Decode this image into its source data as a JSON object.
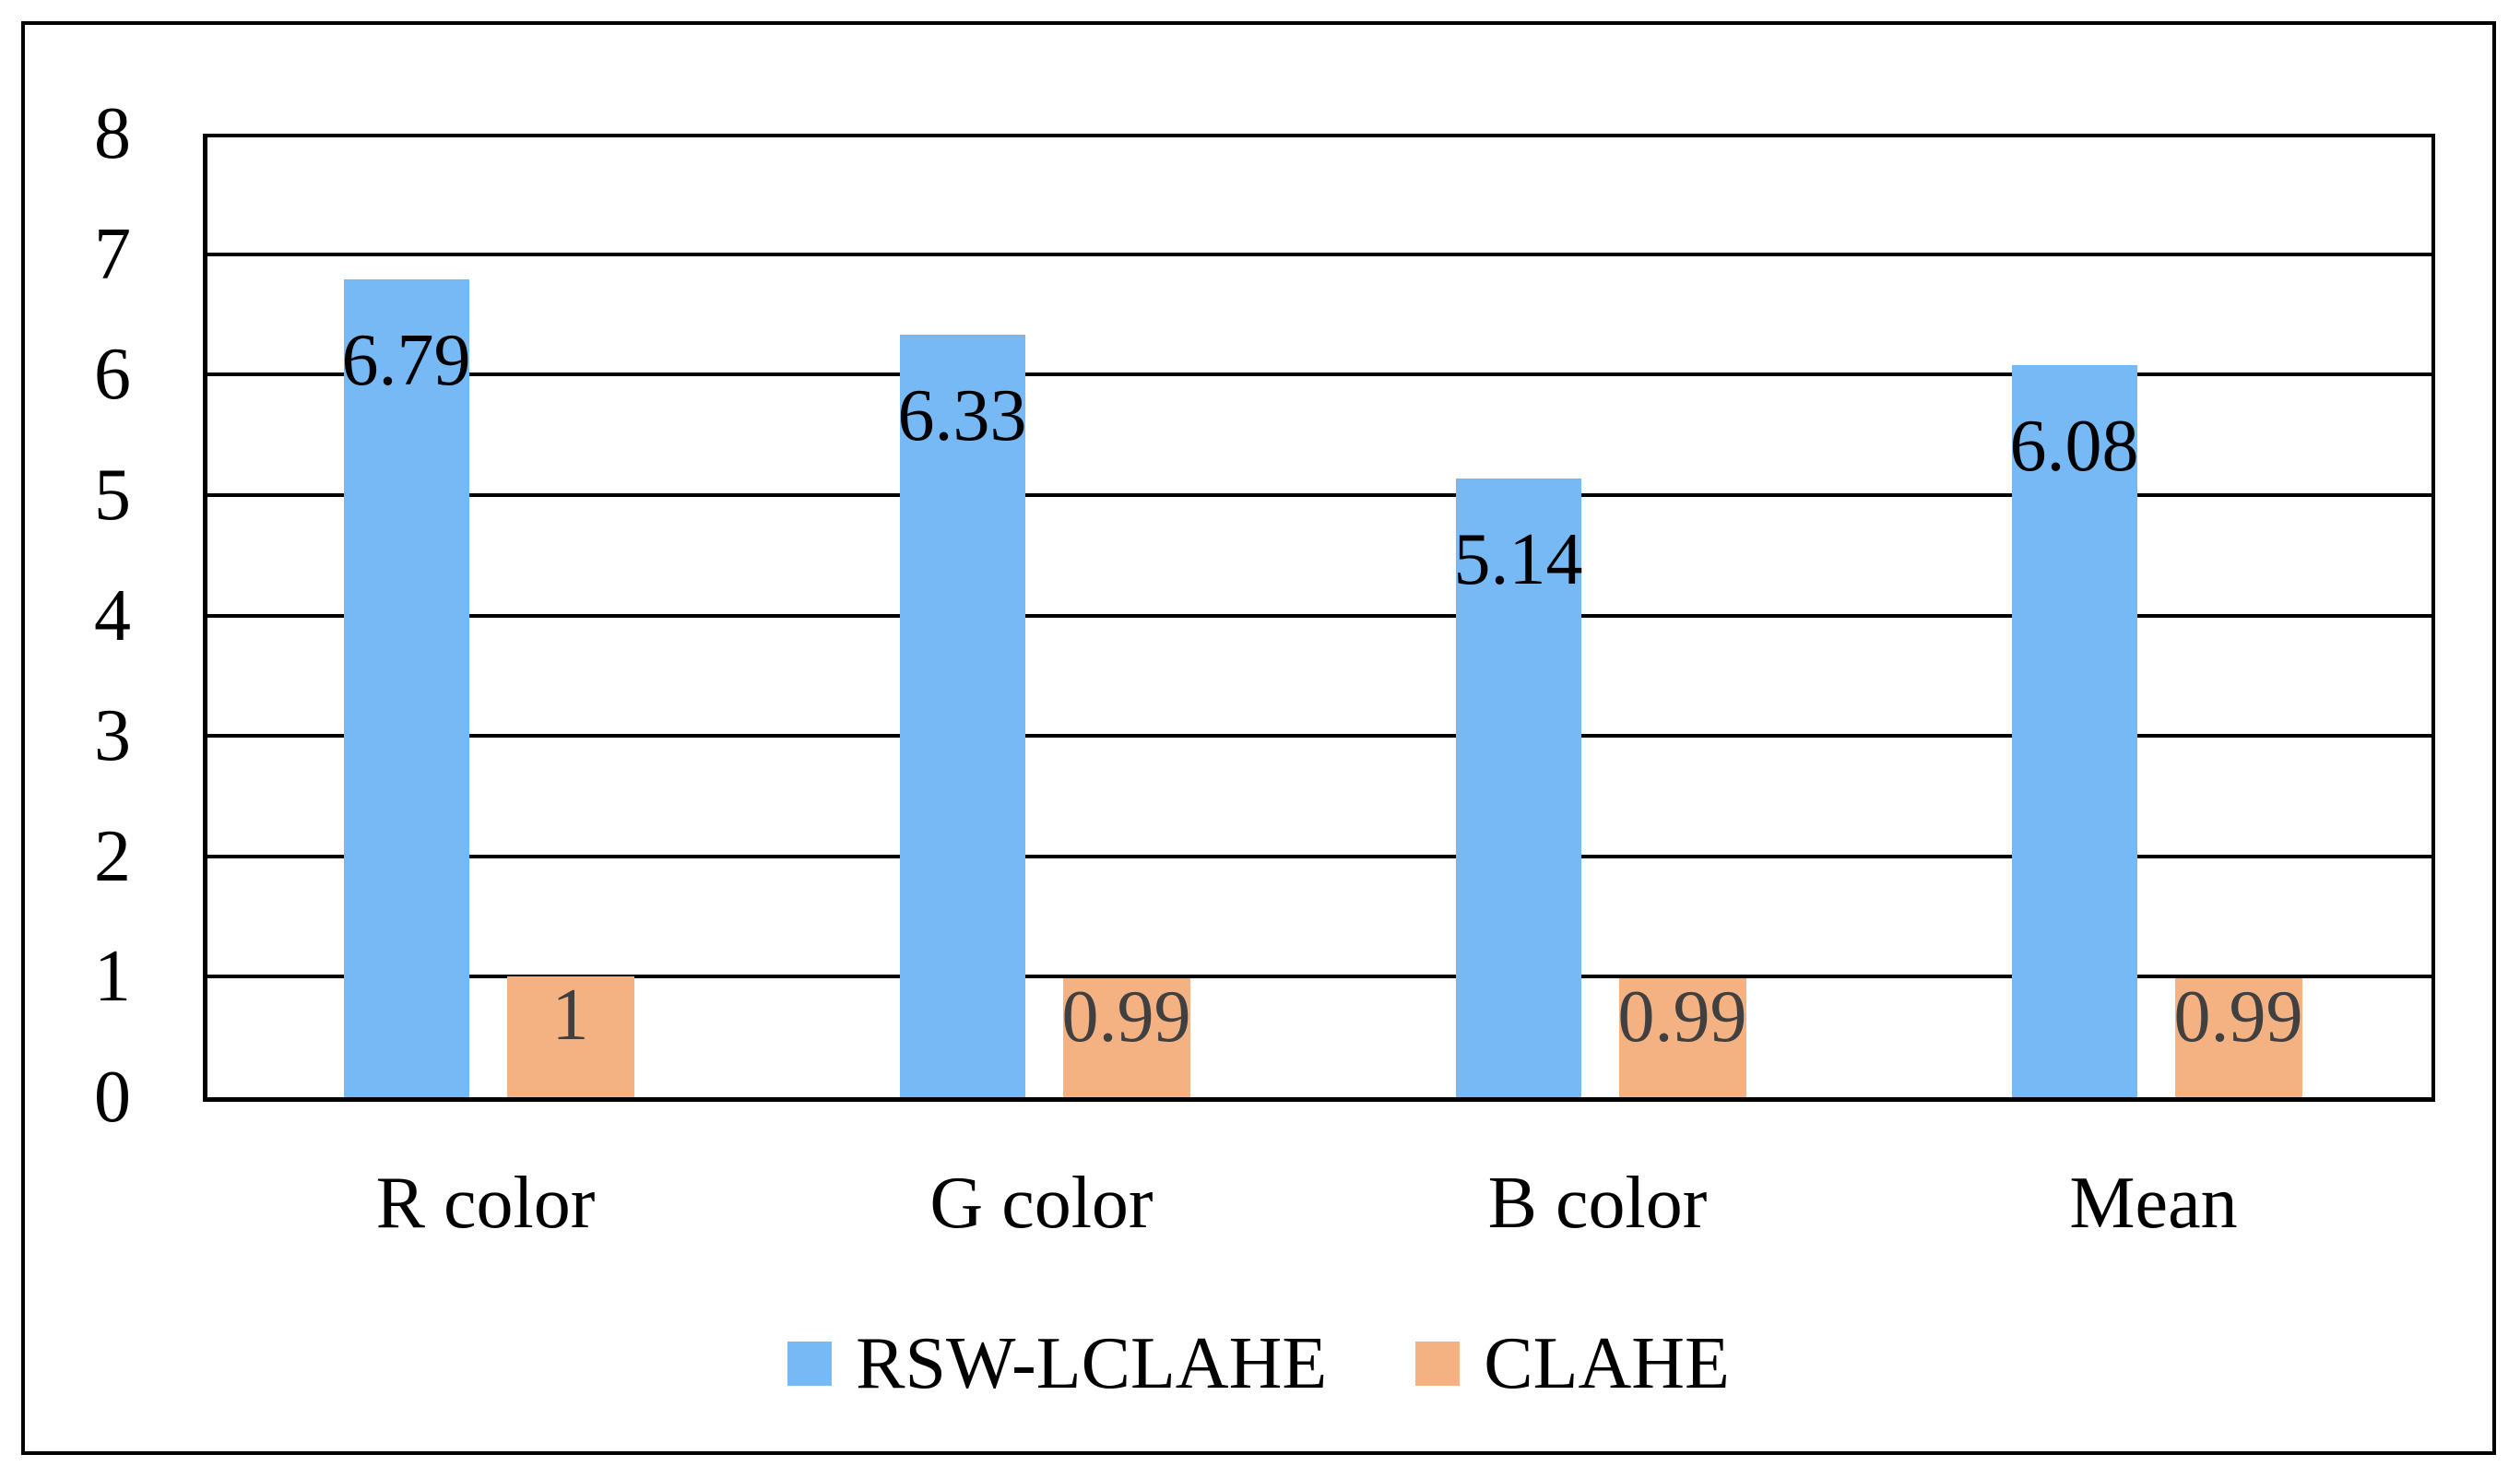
{
  "chart_data": {
    "type": "bar",
    "title": "",
    "xlabel": "",
    "ylabel": "",
    "categories": [
      "R color",
      "G color",
      "B color",
      "Mean"
    ],
    "series": [
      {
        "name": "RSW-LCLAHE",
        "color": "#76B9F5",
        "values": [
          6.79,
          6.33,
          5.14,
          6.08
        ],
        "labels": [
          "6.79",
          "6.33",
          "5.14",
          "6.08"
        ],
        "label_color": "#000000"
      },
      {
        "name": "CLAHE",
        "color": "#F4B181",
        "values": [
          1,
          0.99,
          0.99,
          0.99
        ],
        "labels": [
          "1",
          "0.99",
          "0.99",
          "0.99"
        ],
        "label_color": "#404040"
      }
    ],
    "ylim": [
      0,
      8
    ],
    "yticks": [
      "0",
      "1",
      "2",
      "3",
      "4",
      "5",
      "6",
      "7",
      "8"
    ],
    "grid": true,
    "gridline_color": "#000000",
    "legend_position": "bottom"
  }
}
